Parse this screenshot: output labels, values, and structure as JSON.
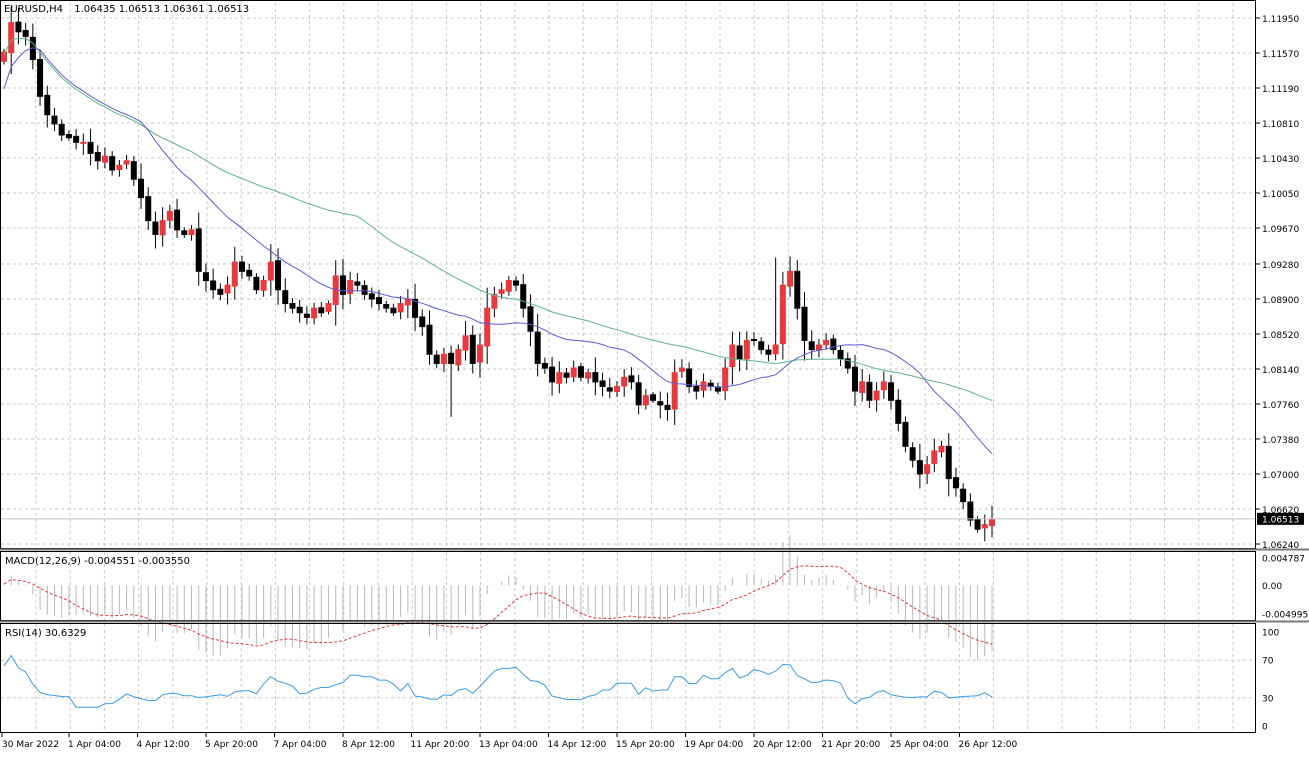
{
  "header": {
    "symbol": "EURUSD,H4",
    "ohlc": "1.06435 1.06513 1.06361 1.06513"
  },
  "macd_panel": {
    "label": "MACD(12,26,9) -0.004551 -0.003550",
    "scale_labels": [
      "0.004787",
      "0.00",
      "-0.004995"
    ]
  },
  "rsi_panel": {
    "label": "RSI(14) 30.6329",
    "scale_labels": [
      "100",
      "70",
      "30",
      "0"
    ]
  },
  "colors": {
    "bull": "#e8393f",
    "bear": "#000000",
    "ma_fast": "#5b5bd6",
    "ma_slow": "#5fb38a",
    "macd_hist": "#b8b8b8",
    "macd_signal": "#e03a3a",
    "rsi": "#3d9be9",
    "grid": "#c8c8c8"
  },
  "chart_data": [
    {
      "type": "candlestick",
      "title": "EURUSD,H4",
      "price_labels": [
        "1.11950",
        "1.11570",
        "1.11190",
        "1.10810",
        "1.10430",
        "1.10050",
        "1.09670",
        "1.09280",
        "1.08900",
        "1.08520",
        "1.08140",
        "1.07760",
        "1.07380",
        "1.07000",
        "1.06620",
        "1.06240"
      ],
      "current_price": "1.06513",
      "time_labels": [
        "30 Mar 2022",
        "1 Apr 04:00",
        "4 Apr 12:00",
        "5 Apr 20:00",
        "7 Apr 04:00",
        "8 Apr 12:00",
        "11 Apr 20:00",
        "13 Apr 04:00",
        "14 Apr 12:00",
        "15 Apr 20:00",
        "19 Apr 04:00",
        "20 Apr 12:00",
        "21 Apr 20:00",
        "25 Apr 04:00",
        "26 Apr 12:00"
      ],
      "ylim": [
        1.061,
        1.121
      ],
      "close": [
        1.1158,
        1.119,
        1.118,
        1.1175,
        1.115,
        1.111,
        1.109,
        1.108,
        1.1068,
        1.1065,
        1.106,
        1.106,
        1.1048,
        1.104,
        1.1045,
        1.103,
        1.1035,
        1.104,
        1.102,
        1.1,
        1.0975,
        1.096,
        1.0975,
        1.0985,
        1.0965,
        1.096,
        1.0965,
        1.092,
        1.091,
        1.09,
        1.0895,
        1.0905,
        1.093,
        1.092,
        1.0915,
        1.09,
        1.091,
        1.093,
        1.09,
        1.0885,
        1.088,
        1.0875,
        1.087,
        1.088,
        1.0875,
        1.0885,
        1.0915,
        1.0895,
        1.091,
        1.0905,
        1.0895,
        1.089,
        1.0885,
        1.088,
        1.0875,
        1.0885,
        1.089,
        1.087,
        1.086,
        1.083,
        1.082,
        1.083,
        1.082,
        1.0835,
        1.085,
        1.082,
        1.084,
        1.088,
        1.0895,
        1.09,
        1.091,
        1.0905,
        1.088,
        1.0855,
        1.082,
        1.0815,
        1.08,
        1.081,
        1.0805,
        1.0815,
        1.0805,
        1.081,
        1.08,
        1.0795,
        1.079,
        1.0795,
        1.0805,
        1.08,
        1.0775,
        1.0785,
        1.078,
        1.0775,
        1.077,
        1.081,
        1.0815,
        1.0795,
        1.079,
        1.08,
        1.0795,
        1.079,
        1.0815,
        1.084,
        1.0825,
        1.0845,
        1.0845,
        1.0835,
        1.083,
        1.084,
        1.0905,
        1.092,
        1.088,
        1.0845,
        1.0835,
        1.084,
        1.0845,
        1.0835,
        1.0825,
        1.0815,
        1.079,
        1.08,
        1.078,
        1.079,
        1.08,
        1.078,
        1.0755,
        1.073,
        1.0715,
        1.07,
        1.071,
        1.0725,
        1.073,
        1.0695,
        1.0685,
        1.067,
        1.065,
        1.064,
        1.0645,
        1.0651
      ],
      "series": [
        {
          "name": "MA fast"
        },
        {
          "name": "MA slow"
        }
      ]
    },
    {
      "type": "macd",
      "ylim": [
        -0.004995,
        0.004787
      ],
      "macd_last": -0.004551,
      "signal_last": -0.00355
    },
    {
      "type": "rsi",
      "ylim": [
        0,
        100
      ],
      "levels": [
        70,
        30
      ],
      "last": 30.6329
    }
  ]
}
